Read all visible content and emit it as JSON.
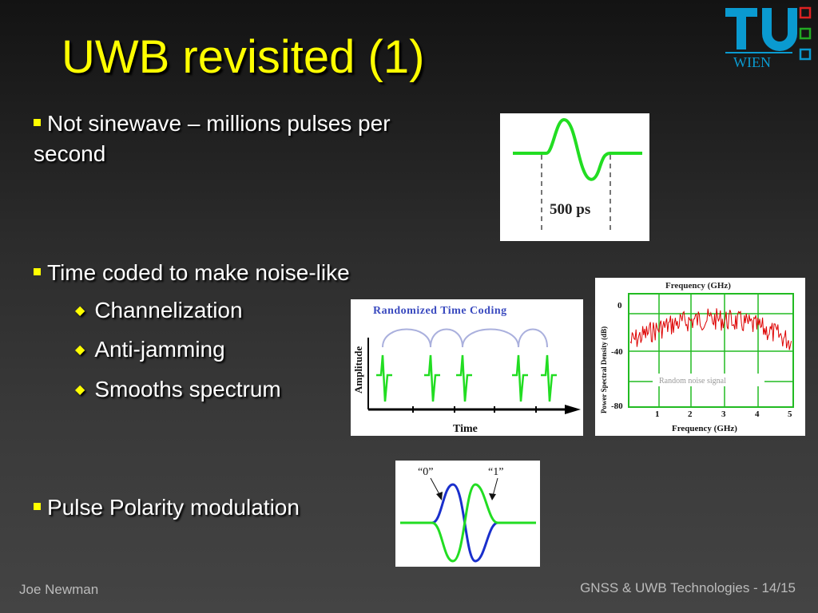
{
  "slide": {
    "title": "UWB revisited (1)",
    "bullets": [
      {
        "text_line1": "Not sinewave – millions pulses per",
        "text_line2": "second"
      },
      {
        "text": "Time coded to make noise-like"
      },
      {
        "text": "Pulse Polarity modulation"
      }
    ],
    "subbullets": [
      "Channelization",
      "Anti-jamming",
      "Smooths spectrum"
    ],
    "footer_left": "Joe Newman",
    "footer_right": "GNSS & UWB Technologies - 14/15"
  },
  "logo": {
    "letters": "TU",
    "word": "WIEN",
    "color": "#0099cc",
    "accent": "#00aa00",
    "accent2": "#cc0000"
  },
  "figure_pulse": {
    "label": "500 ps"
  },
  "figure_time_coding": {
    "title": "Randomized Time Coding",
    "ylabel": "Amplitude",
    "xlabel": "Time"
  },
  "figure_noise": {
    "top_label": "Frequency (GHz)",
    "ylabel": "Power Spectral Density (dB)",
    "xlabel": "Frequency (GHz)",
    "yticks": [
      "0",
      "-40",
      "-80"
    ],
    "xticks": [
      "1",
      "2",
      "3",
      "4",
      "5"
    ],
    "inner_label": "Random noise signal"
  },
  "figure_polarity": {
    "label0": "“0”",
    "label1": "“1”"
  },
  "colors": {
    "title": "#ffff00",
    "pulse": "#22dd22",
    "blue": "#1a2fcc",
    "noise": "#dd0000"
  }
}
